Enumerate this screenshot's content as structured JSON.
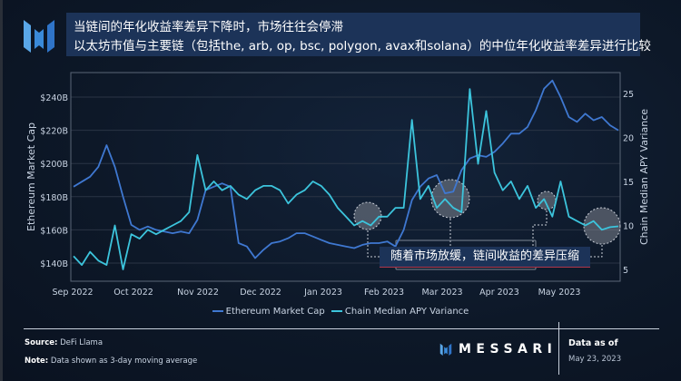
{
  "header": {
    "title_line1": "当链间的年化收益率差异下降时，市场往往会停滞",
    "title_line2": "以太坊市值与主要链（包括the, arb, op, bsc, polygon, avax和solana）的中位年化收益率差异进行比较"
  },
  "annotation": {
    "callout_text": "随着市场放缓，链间收益的差异压缩"
  },
  "legend": {
    "items": [
      {
        "label": "Ethereum Market Cap",
        "color": "#3f78d1"
      },
      {
        "label": "Chain Median APY Variance",
        "color": "#3cc4dc"
      }
    ]
  },
  "footer": {
    "source_label": "Source",
    "source_value": "DeFi Llama",
    "note_label": "Note",
    "note_value": "Data shown as 3-day moving average",
    "brand": "MESSARI",
    "data_as_of_label": "Data as of",
    "data_as_of_date": "May 23, 2023"
  },
  "chart_data": {
    "type": "line",
    "title": "当链间的年化收益率差异下降时，市场往往会停滞",
    "subtitle": "以太坊市值与主要链（包括the, arb, op, bsc, polygon, avax和solana）的中位年化收益率差异进行比较",
    "xlabel": "",
    "ylabel": "Ethereum Market Cap",
    "y2label": "Chain Median APY Variance",
    "x_ticks": [
      "Sep 2022",
      "Oct 2022",
      "Nov 2022",
      "Dec 2022",
      "Jan 2023",
      "Feb 2023",
      "Mar 2023",
      "Apr 2023",
      "May 2023"
    ],
    "y_ticks": [
      "$140B",
      "$160B",
      "$180B",
      "$200B",
      "$220B",
      "$240B"
    ],
    "y2_ticks": [
      "5",
      "10",
      "15",
      "20",
      "25"
    ],
    "ylim": [
      135,
      255
    ],
    "y2lim": [
      4,
      27
    ],
    "grid": true,
    "legend_position": "bottom",
    "x": [
      "2022-09-01",
      "2022-09-05",
      "2022-09-09",
      "2022-09-13",
      "2022-09-17",
      "2022-09-21",
      "2022-09-25",
      "2022-09-29",
      "2022-10-03",
      "2022-10-07",
      "2022-10-11",
      "2022-10-15",
      "2022-10-19",
      "2022-10-23",
      "2022-10-27",
      "2022-10-31",
      "2022-11-04",
      "2022-11-08",
      "2022-11-12",
      "2022-11-16",
      "2022-11-20",
      "2022-11-24",
      "2022-11-28",
      "2022-12-02",
      "2022-12-06",
      "2022-12-10",
      "2022-12-14",
      "2022-12-18",
      "2022-12-22",
      "2022-12-26",
      "2022-12-30",
      "2023-01-03",
      "2023-01-07",
      "2023-01-11",
      "2023-01-15",
      "2023-01-19",
      "2023-01-23",
      "2023-01-27",
      "2023-01-31",
      "2023-02-04",
      "2023-02-08",
      "2023-02-12",
      "2023-02-16",
      "2023-02-20",
      "2023-02-24",
      "2023-02-28",
      "2023-03-04",
      "2023-03-08",
      "2023-03-12",
      "2023-03-16",
      "2023-03-20",
      "2023-03-24",
      "2023-03-28",
      "2023-04-01",
      "2023-04-05",
      "2023-04-09",
      "2023-04-13",
      "2023-04-17",
      "2023-04-21",
      "2023-04-25",
      "2023-04-29",
      "2023-05-03",
      "2023-05-07",
      "2023-05-11",
      "2023-05-15",
      "2023-05-19",
      "2023-05-23"
    ],
    "series": [
      {
        "name": "Ethereum Market Cap",
        "axis": "left",
        "unit": "$B",
        "values": [
          186,
          189,
          192,
          198,
          211,
          198,
          180,
          163,
          160,
          162,
          160,
          159,
          158,
          159,
          158,
          166,
          184,
          186,
          188,
          186,
          152,
          150,
          143,
          148,
          152,
          153,
          155,
          158,
          158,
          156,
          154,
          152,
          151,
          150,
          149,
          151,
          152,
          152,
          153,
          150,
          160,
          178,
          186,
          191,
          193,
          182,
          183,
          196,
          203,
          205,
          204,
          207,
          212,
          218,
          218,
          222,
          232,
          245,
          250,
          240,
          228,
          225,
          230,
          226,
          228,
          223,
          220
        ]
      },
      {
        "name": "Chain Median APY Variance",
        "axis": "right",
        "unit": "",
        "values": [
          6.5,
          5.5,
          7.0,
          6.0,
          5.5,
          10.0,
          5.0,
          9.0,
          8.5,
          9.5,
          9.0,
          9.5,
          10.0,
          10.5,
          11.5,
          18.0,
          14.0,
          15.0,
          14.0,
          14.5,
          13.5,
          13.0,
          14.0,
          14.5,
          14.5,
          14.0,
          12.5,
          13.5,
          14.0,
          15.0,
          14.5,
          13.5,
          12.0,
          11.0,
          10.0,
          10.5,
          10.0,
          11.0,
          11.0,
          12.0,
          12.0,
          22.0,
          13.0,
          14.5,
          12.0,
          13.0,
          12.0,
          11.5,
          25.5,
          17.0,
          23.0,
          16.0,
          14.0,
          15.0,
          13.0,
          14.5,
          12.0,
          13.0,
          11.0,
          15.0,
          11.0,
          10.5,
          10.0,
          10.5,
          9.5,
          9.8,
          9.9
        ]
      }
    ]
  }
}
